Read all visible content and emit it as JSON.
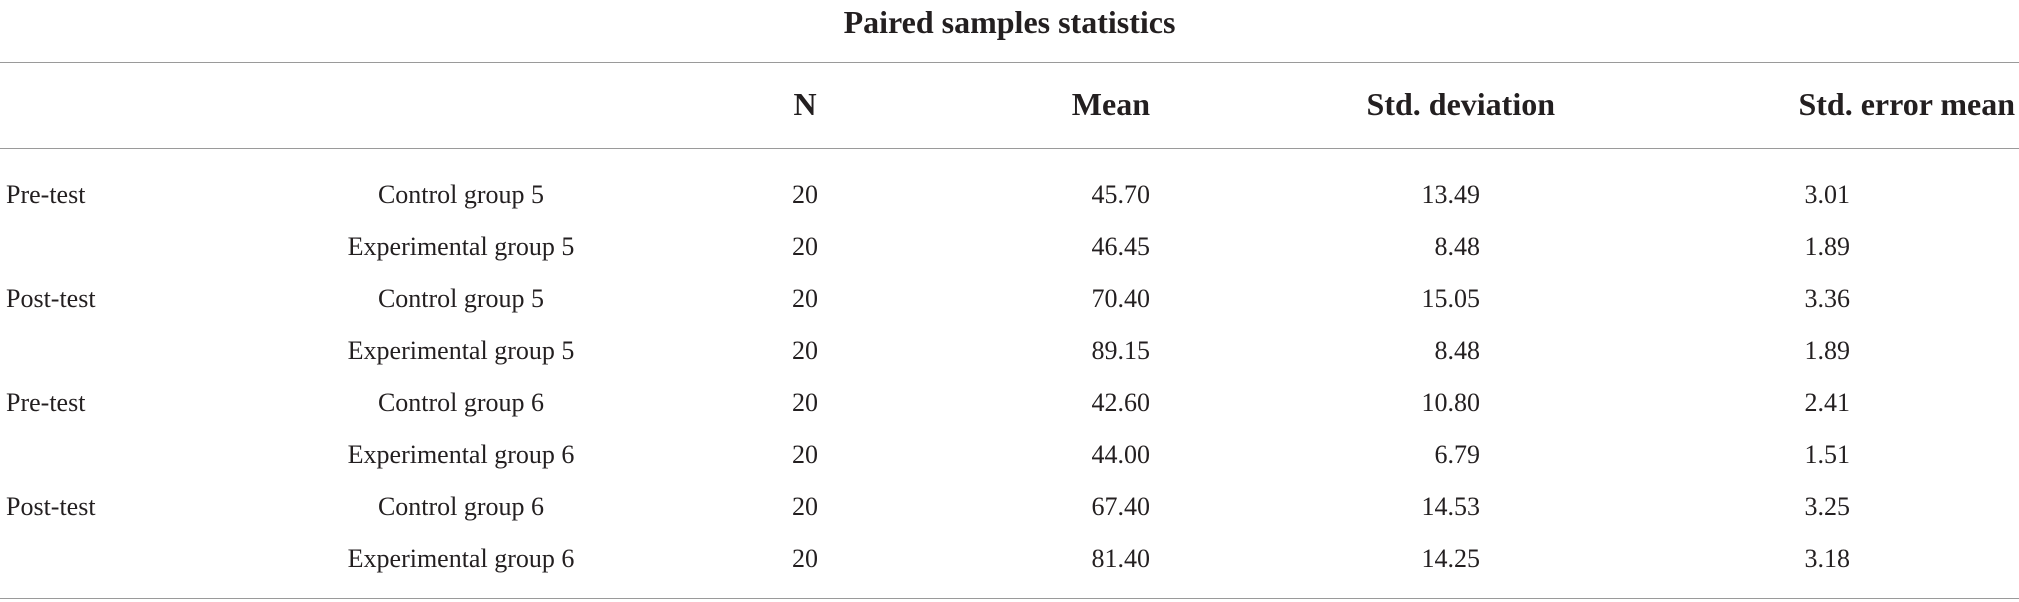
{
  "table": {
    "title": "Paired samples statistics",
    "headers": {
      "n": "N",
      "mean": "Mean",
      "sd": "Std. deviation",
      "sem": "Std. error mean"
    },
    "rows": [
      {
        "phase": "Pre-test",
        "group": "Control group 5",
        "n": "20",
        "mean": "45.70",
        "sd": "13.49",
        "sem": "3.01"
      },
      {
        "phase": "",
        "group": "Experimental group 5",
        "n": "20",
        "mean": "46.45",
        "sd": "8.48",
        "sem": "1.89"
      },
      {
        "phase": "Post-test",
        "group": "Control group 5",
        "n": "20",
        "mean": "70.40",
        "sd": "15.05",
        "sem": "3.36"
      },
      {
        "phase": "",
        "group": "Experimental group 5",
        "n": "20",
        "mean": "89.15",
        "sd": "8.48",
        "sem": "1.89"
      },
      {
        "phase": "Pre-test",
        "group": "Control group 6",
        "n": "20",
        "mean": "42.60",
        "sd": "10.80",
        "sem": "2.41"
      },
      {
        "phase": "",
        "group": "Experimental group 6",
        "n": "20",
        "mean": "44.00",
        "sd": "6.79",
        "sem": "1.51"
      },
      {
        "phase": "Post-test",
        "group": "Control group 6",
        "n": "20",
        "mean": "67.40",
        "sd": "14.53",
        "sem": "3.25"
      },
      {
        "phase": "",
        "group": "Experimental group 6",
        "n": "20",
        "mean": "81.40",
        "sd": "14.25",
        "sem": "3.18"
      }
    ]
  }
}
